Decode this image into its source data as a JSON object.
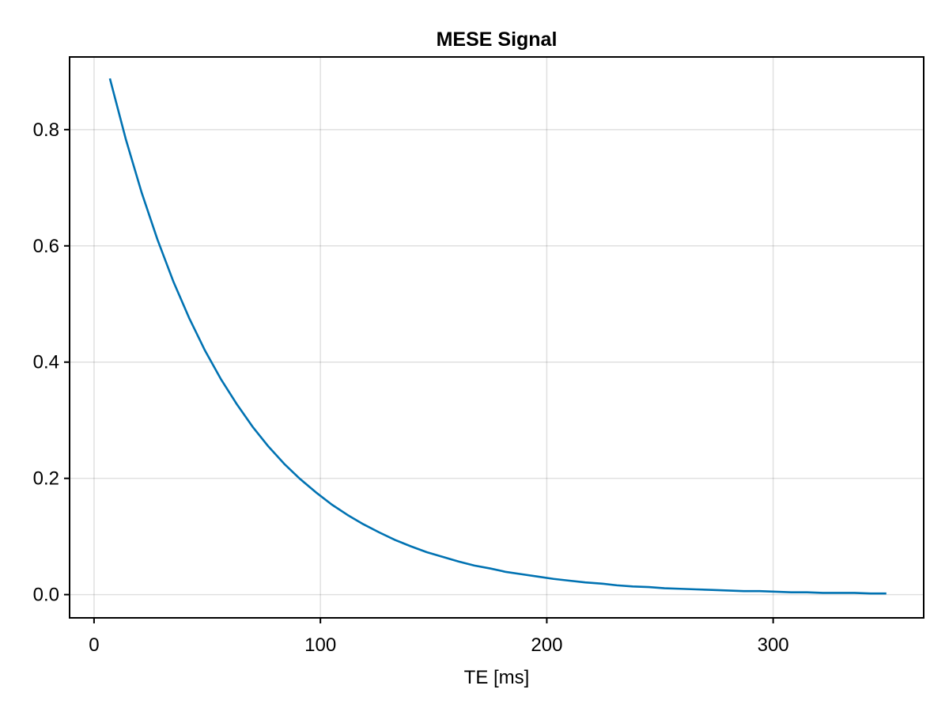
{
  "chart_data": {
    "type": "line",
    "title": "MESE Signal",
    "xlabel": "TE [ms]",
    "ylabel": "",
    "xlim": [
      -10.8,
      366.5
    ],
    "ylim": [
      -0.04,
      0.925
    ],
    "x_ticks": [
      0,
      100,
      200,
      300
    ],
    "x_tick_labels": [
      "0",
      "100",
      "200",
      "300"
    ],
    "y_ticks": [
      0.0,
      0.2,
      0.4,
      0.6,
      0.8
    ],
    "y_tick_labels": [
      "0.0",
      "0.2",
      "0.4",
      "0.6",
      "0.8"
    ],
    "grid": true,
    "legend": "none",
    "series": [
      {
        "color": "#0072b2",
        "x": [
          7,
          14,
          21,
          28,
          35,
          42,
          49,
          56,
          63,
          70,
          77,
          84,
          91,
          98,
          105,
          112,
          119,
          126,
          133,
          140,
          147,
          154,
          161,
          168,
          175,
          182,
          189,
          196,
          203,
          210,
          217,
          224,
          231,
          238,
          245,
          252,
          259,
          266,
          273,
          280,
          287,
          294,
          301,
          308,
          315,
          322,
          329,
          336,
          343,
          350
        ],
        "y": [
          0.888,
          0.784,
          0.692,
          0.611,
          0.539,
          0.476,
          0.42,
          0.371,
          0.328,
          0.289,
          0.255,
          0.225,
          0.199,
          0.176,
          0.155,
          0.137,
          0.121,
          0.107,
          0.094,
          0.083,
          0.073,
          0.065,
          0.057,
          0.05,
          0.045,
          0.039,
          0.035,
          0.031,
          0.027,
          0.024,
          0.021,
          0.019,
          0.016,
          0.014,
          0.013,
          0.011,
          0.01,
          0.009,
          0.008,
          0.007,
          0.006,
          0.006,
          0.005,
          0.004,
          0.004,
          0.003,
          0.003,
          0.003,
          0.002,
          0.002
        ]
      }
    ]
  }
}
